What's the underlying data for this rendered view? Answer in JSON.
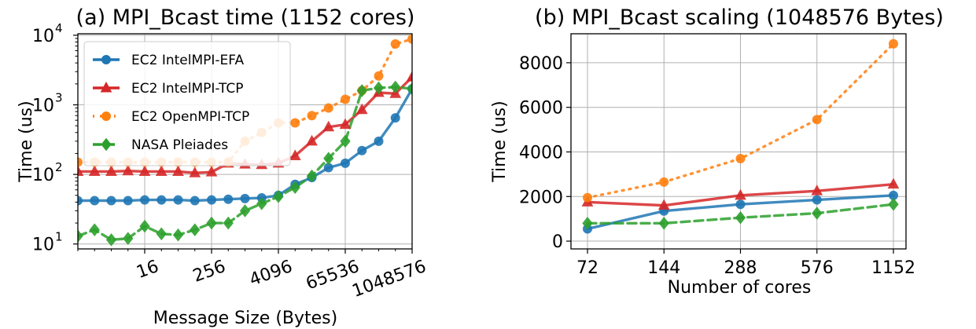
{
  "chart_data": [
    {
      "type": "line",
      "title": "(a) MPI_Bcast time (1152 cores)",
      "xlabel": "Message Size (Bytes)",
      "ylabel": "Time (us)",
      "x_scale": "log2",
      "y_scale": "log10",
      "xlim": [
        1,
        1048576
      ],
      "ylim": [
        8.5,
        10500
      ],
      "grid": true,
      "legend": "upper-left",
      "x_ticks": [
        "16",
        "256",
        "4096",
        "65536",
        "1048576"
      ],
      "y_ticks": [
        {
          "base": "10",
          "exp": "1"
        },
        {
          "base": "10",
          "exp": "2"
        },
        {
          "base": "10",
          "exp": "3"
        },
        {
          "base": "10",
          "exp": "4"
        }
      ],
      "x": [
        1,
        2,
        4,
        8,
        16,
        32,
        64,
        128,
        256,
        512,
        1024,
        2048,
        4096,
        8192,
        16384,
        32768,
        65536,
        131072,
        262144,
        524288,
        1048576
      ],
      "series": [
        {
          "name": "EC2 IntelMPI-EFA",
          "color": "#1f77b4",
          "style": "solid",
          "marker": "circle",
          "values": [
            42,
            42,
            42,
            42,
            43,
            43,
            43,
            42,
            43,
            44,
            45,
            46,
            50,
            72,
            90,
            125,
            145,
            220,
            300,
            650,
            1700
          ]
        },
        {
          "name": "EC2 IntelMPI-TCP",
          "color": "#d62728",
          "style": "solid",
          "marker": "triangle",
          "values": [
            110,
            110,
            110,
            112,
            110,
            110,
            110,
            105,
            108,
            145,
            140,
            138,
            145,
            185,
            300,
            480,
            520,
            850,
            1500,
            1450,
            2500
          ]
        },
        {
          "name": "EC2 OpenMPI-TCP",
          "color": "#ff7f0e",
          "style": "dotted",
          "marker": "circle",
          "values": [
            150,
            150,
            150,
            150,
            150,
            150,
            150,
            150,
            150,
            150,
            300,
            400,
            550,
            550,
            700,
            900,
            1200,
            1600,
            2600,
            7500,
            8800
          ]
        },
        {
          "name": "NASA Pleiades",
          "color": "#2ca02c",
          "style": "dashed",
          "marker": "diamond",
          "values": [
            13,
            16,
            11.5,
            12,
            18,
            14,
            13.5,
            16,
            20,
            20,
            30,
            38,
            48,
            65,
            95,
            170,
            300,
            1600,
            1750,
            1800,
            1700
          ]
        }
      ]
    },
    {
      "type": "line",
      "title": "(b) MPI_Bcast scaling (1048576 Bytes)",
      "xlabel": "Number of cores",
      "ylabel": "Time (us)",
      "ylim": [
        -350,
        9300
      ],
      "grid": true,
      "categories": [
        "72",
        "144",
        "288",
        "576",
        "1152"
      ],
      "y_ticks": [
        0,
        2000,
        4000,
        6000,
        8000
      ],
      "series": [
        {
          "name": "EC2 IntelMPI-EFA",
          "color": "#1f77b4",
          "style": "solid",
          "marker": "circle",
          "values": [
            550,
            1350,
            1650,
            1850,
            2050
          ]
        },
        {
          "name": "EC2 IntelMPI-TCP",
          "color": "#d62728",
          "style": "solid",
          "marker": "triangle",
          "values": [
            1750,
            1600,
            2050,
            2250,
            2550
          ]
        },
        {
          "name": "EC2 OpenMPI-TCP",
          "color": "#ff7f0e",
          "style": "dotted",
          "marker": "circle",
          "values": [
            1950,
            2650,
            3700,
            5450,
            8850
          ]
        },
        {
          "name": "NASA Pleiades",
          "color": "#2ca02c",
          "style": "dashed",
          "marker": "diamond",
          "values": [
            800,
            800,
            1050,
            1250,
            1650
          ]
        }
      ]
    }
  ]
}
